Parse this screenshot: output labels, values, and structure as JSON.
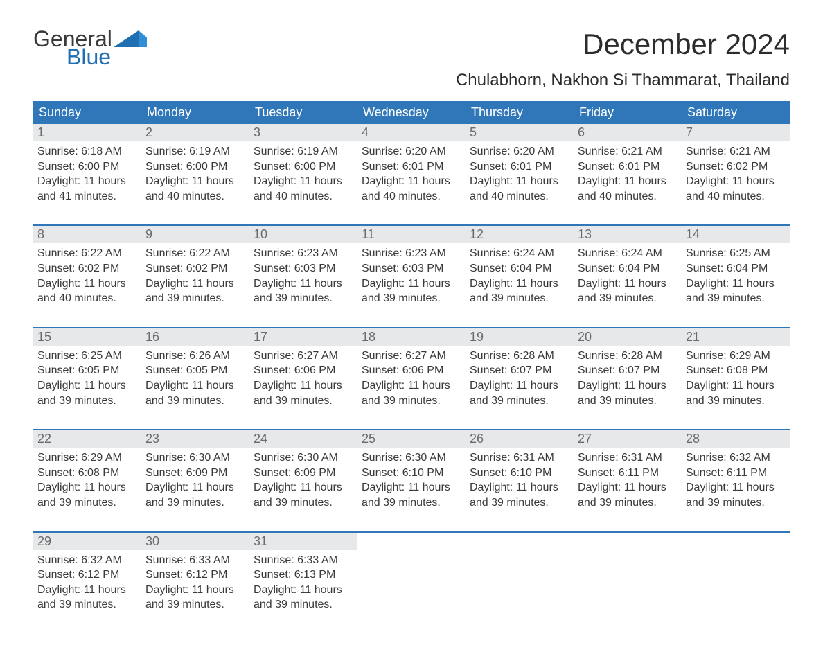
{
  "brand": {
    "top": "General",
    "bottom": "Blue",
    "top_color": "#3a3a3a",
    "bottom_color": "#1f6fb2"
  },
  "title": "December 2024",
  "subtitle": "Chulabhorn, Nakhon Si Thammarat, Thailand",
  "colors": {
    "header_bg": "#2f77b8",
    "header_text": "#ffffff",
    "daynum_bg": "#e7e8ea",
    "daynum_text": "#6a6a6a",
    "body_text": "#3a3a3a",
    "week_divider": "#2f77b8",
    "page_bg": "#ffffff"
  },
  "fonts": {
    "title_size_pt": 32,
    "subtitle_size_pt": 18,
    "header_size_pt": 14,
    "cell_size_pt": 12
  },
  "day_labels": [
    "Sunday",
    "Monday",
    "Tuesday",
    "Wednesday",
    "Thursday",
    "Friday",
    "Saturday"
  ],
  "weeks": [
    [
      {
        "day": "1",
        "sunrise": "Sunrise: 6:18 AM",
        "sunset": "Sunset: 6:00 PM",
        "dl1": "Daylight: 11 hours",
        "dl2": "and 41 minutes."
      },
      {
        "day": "2",
        "sunrise": "Sunrise: 6:19 AM",
        "sunset": "Sunset: 6:00 PM",
        "dl1": "Daylight: 11 hours",
        "dl2": "and 40 minutes."
      },
      {
        "day": "3",
        "sunrise": "Sunrise: 6:19 AM",
        "sunset": "Sunset: 6:00 PM",
        "dl1": "Daylight: 11 hours",
        "dl2": "and 40 minutes."
      },
      {
        "day": "4",
        "sunrise": "Sunrise: 6:20 AM",
        "sunset": "Sunset: 6:01 PM",
        "dl1": "Daylight: 11 hours",
        "dl2": "and 40 minutes."
      },
      {
        "day": "5",
        "sunrise": "Sunrise: 6:20 AM",
        "sunset": "Sunset: 6:01 PM",
        "dl1": "Daylight: 11 hours",
        "dl2": "and 40 minutes."
      },
      {
        "day": "6",
        "sunrise": "Sunrise: 6:21 AM",
        "sunset": "Sunset: 6:01 PM",
        "dl1": "Daylight: 11 hours",
        "dl2": "and 40 minutes."
      },
      {
        "day": "7",
        "sunrise": "Sunrise: 6:21 AM",
        "sunset": "Sunset: 6:02 PM",
        "dl1": "Daylight: 11 hours",
        "dl2": "and 40 minutes."
      }
    ],
    [
      {
        "day": "8",
        "sunrise": "Sunrise: 6:22 AM",
        "sunset": "Sunset: 6:02 PM",
        "dl1": "Daylight: 11 hours",
        "dl2": "and 40 minutes."
      },
      {
        "day": "9",
        "sunrise": "Sunrise: 6:22 AM",
        "sunset": "Sunset: 6:02 PM",
        "dl1": "Daylight: 11 hours",
        "dl2": "and 39 minutes."
      },
      {
        "day": "10",
        "sunrise": "Sunrise: 6:23 AM",
        "sunset": "Sunset: 6:03 PM",
        "dl1": "Daylight: 11 hours",
        "dl2": "and 39 minutes."
      },
      {
        "day": "11",
        "sunrise": "Sunrise: 6:23 AM",
        "sunset": "Sunset: 6:03 PM",
        "dl1": "Daylight: 11 hours",
        "dl2": "and 39 minutes."
      },
      {
        "day": "12",
        "sunrise": "Sunrise: 6:24 AM",
        "sunset": "Sunset: 6:04 PM",
        "dl1": "Daylight: 11 hours",
        "dl2": "and 39 minutes."
      },
      {
        "day": "13",
        "sunrise": "Sunrise: 6:24 AM",
        "sunset": "Sunset: 6:04 PM",
        "dl1": "Daylight: 11 hours",
        "dl2": "and 39 minutes."
      },
      {
        "day": "14",
        "sunrise": "Sunrise: 6:25 AM",
        "sunset": "Sunset: 6:04 PM",
        "dl1": "Daylight: 11 hours",
        "dl2": "and 39 minutes."
      }
    ],
    [
      {
        "day": "15",
        "sunrise": "Sunrise: 6:25 AM",
        "sunset": "Sunset: 6:05 PM",
        "dl1": "Daylight: 11 hours",
        "dl2": "and 39 minutes."
      },
      {
        "day": "16",
        "sunrise": "Sunrise: 6:26 AM",
        "sunset": "Sunset: 6:05 PM",
        "dl1": "Daylight: 11 hours",
        "dl2": "and 39 minutes."
      },
      {
        "day": "17",
        "sunrise": "Sunrise: 6:27 AM",
        "sunset": "Sunset: 6:06 PM",
        "dl1": "Daylight: 11 hours",
        "dl2": "and 39 minutes."
      },
      {
        "day": "18",
        "sunrise": "Sunrise: 6:27 AM",
        "sunset": "Sunset: 6:06 PM",
        "dl1": "Daylight: 11 hours",
        "dl2": "and 39 minutes."
      },
      {
        "day": "19",
        "sunrise": "Sunrise: 6:28 AM",
        "sunset": "Sunset: 6:07 PM",
        "dl1": "Daylight: 11 hours",
        "dl2": "and 39 minutes."
      },
      {
        "day": "20",
        "sunrise": "Sunrise: 6:28 AM",
        "sunset": "Sunset: 6:07 PM",
        "dl1": "Daylight: 11 hours",
        "dl2": "and 39 minutes."
      },
      {
        "day": "21",
        "sunrise": "Sunrise: 6:29 AM",
        "sunset": "Sunset: 6:08 PM",
        "dl1": "Daylight: 11 hours",
        "dl2": "and 39 minutes."
      }
    ],
    [
      {
        "day": "22",
        "sunrise": "Sunrise: 6:29 AM",
        "sunset": "Sunset: 6:08 PM",
        "dl1": "Daylight: 11 hours",
        "dl2": "and 39 minutes."
      },
      {
        "day": "23",
        "sunrise": "Sunrise: 6:30 AM",
        "sunset": "Sunset: 6:09 PM",
        "dl1": "Daylight: 11 hours",
        "dl2": "and 39 minutes."
      },
      {
        "day": "24",
        "sunrise": "Sunrise: 6:30 AM",
        "sunset": "Sunset: 6:09 PM",
        "dl1": "Daylight: 11 hours",
        "dl2": "and 39 minutes."
      },
      {
        "day": "25",
        "sunrise": "Sunrise: 6:30 AM",
        "sunset": "Sunset: 6:10 PM",
        "dl1": "Daylight: 11 hours",
        "dl2": "and 39 minutes."
      },
      {
        "day": "26",
        "sunrise": "Sunrise: 6:31 AM",
        "sunset": "Sunset: 6:10 PM",
        "dl1": "Daylight: 11 hours",
        "dl2": "and 39 minutes."
      },
      {
        "day": "27",
        "sunrise": "Sunrise: 6:31 AM",
        "sunset": "Sunset: 6:11 PM",
        "dl1": "Daylight: 11 hours",
        "dl2": "and 39 minutes."
      },
      {
        "day": "28",
        "sunrise": "Sunrise: 6:32 AM",
        "sunset": "Sunset: 6:11 PM",
        "dl1": "Daylight: 11 hours",
        "dl2": "and 39 minutes."
      }
    ],
    [
      {
        "day": "29",
        "sunrise": "Sunrise: 6:32 AM",
        "sunset": "Sunset: 6:12 PM",
        "dl1": "Daylight: 11 hours",
        "dl2": "and 39 minutes."
      },
      {
        "day": "30",
        "sunrise": "Sunrise: 6:33 AM",
        "sunset": "Sunset: 6:12 PM",
        "dl1": "Daylight: 11 hours",
        "dl2": "and 39 minutes."
      },
      {
        "day": "31",
        "sunrise": "Sunrise: 6:33 AM",
        "sunset": "Sunset: 6:13 PM",
        "dl1": "Daylight: 11 hours",
        "dl2": "and 39 minutes."
      },
      null,
      null,
      null,
      null
    ]
  ]
}
